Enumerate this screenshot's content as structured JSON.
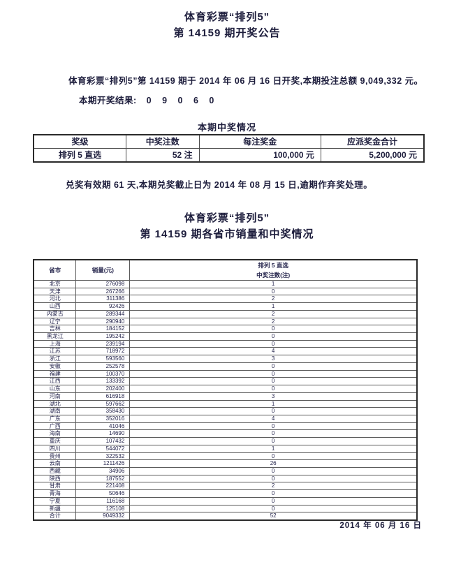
{
  "header": {
    "title_line1": "体育彩票“排列5”",
    "title_line2": "第 14159 期开奖公告"
  },
  "intro": {
    "text": "体育彩票“排列5”第 14159 期于 2014 年 06 月 16 日开奖,本期投注总额 9,049,332 元。",
    "result_label": "本期开奖结果:",
    "result_value": "0 9 0 6 0"
  },
  "prize_section": {
    "title": "本期中奖情况",
    "table": {
      "headers": [
        "奖级",
        "中奖注数",
        "每注奖金",
        "应派奖金合计"
      ],
      "rows": [
        [
          "排列 5 直选",
          "52 注",
          "100,000 元",
          "5,200,000 元"
        ]
      ]
    }
  },
  "redeem_note": "兑奖有效期 61 天,本期兑奖截止日为 2014 年 08 月 15 日,逾期作弃奖处理。",
  "province_section": {
    "title_line1": "体育彩票“排列5”",
    "title_line2": "第 14159 期各省市销量和中奖情况",
    "table": {
      "col1_header": "省市",
      "col2_header": "销量(元)",
      "col3_header_line1": "排列 5 直选",
      "col3_header_line2": "中奖注数(注)",
      "rows": [
        [
          "北京",
          "276098",
          "1"
        ],
        [
          "天津",
          "267266",
          "0"
        ],
        [
          "河北",
          "311386",
          "2"
        ],
        [
          "山西",
          "92426",
          "1"
        ],
        [
          "内蒙古",
          "289344",
          "2"
        ],
        [
          "辽宁",
          "290940",
          "2"
        ],
        [
          "吉林",
          "184152",
          "0"
        ],
        [
          "黑龙江",
          "195242",
          "0"
        ],
        [
          "上海",
          "239194",
          "0"
        ],
        [
          "江苏",
          "718972",
          "4"
        ],
        [
          "浙江",
          "593560",
          "3"
        ],
        [
          "安徽",
          "252578",
          "0"
        ],
        [
          "福建",
          "100370",
          "0"
        ],
        [
          "江西",
          "133392",
          "0"
        ],
        [
          "山东",
          "202400",
          "0"
        ],
        [
          "河南",
          "616918",
          "3"
        ],
        [
          "湖北",
          "597662",
          "1"
        ],
        [
          "湖南",
          "358430",
          "0"
        ],
        [
          "广东",
          "352016",
          "4"
        ],
        [
          "广西",
          "41046",
          "0"
        ],
        [
          "海南",
          "14690",
          "0"
        ],
        [
          "重庆",
          "107432",
          "0"
        ],
        [
          "四川",
          "544072",
          "1"
        ],
        [
          "贵州",
          "322532",
          "0"
        ],
        [
          "云南",
          "1211426",
          "26"
        ],
        [
          "西藏",
          "34906",
          "0"
        ],
        [
          "陕西",
          "187552",
          "0"
        ],
        [
          "甘肃",
          "221408",
          "2"
        ],
        [
          "青海",
          "50646",
          "0"
        ],
        [
          "宁夏",
          "116168",
          "0"
        ],
        [
          "新疆",
          "125108",
          "0"
        ],
        [
          "合计",
          "9049332",
          "52"
        ]
      ]
    }
  },
  "footer": {
    "date": "2014 年 06 月 16 日"
  }
}
